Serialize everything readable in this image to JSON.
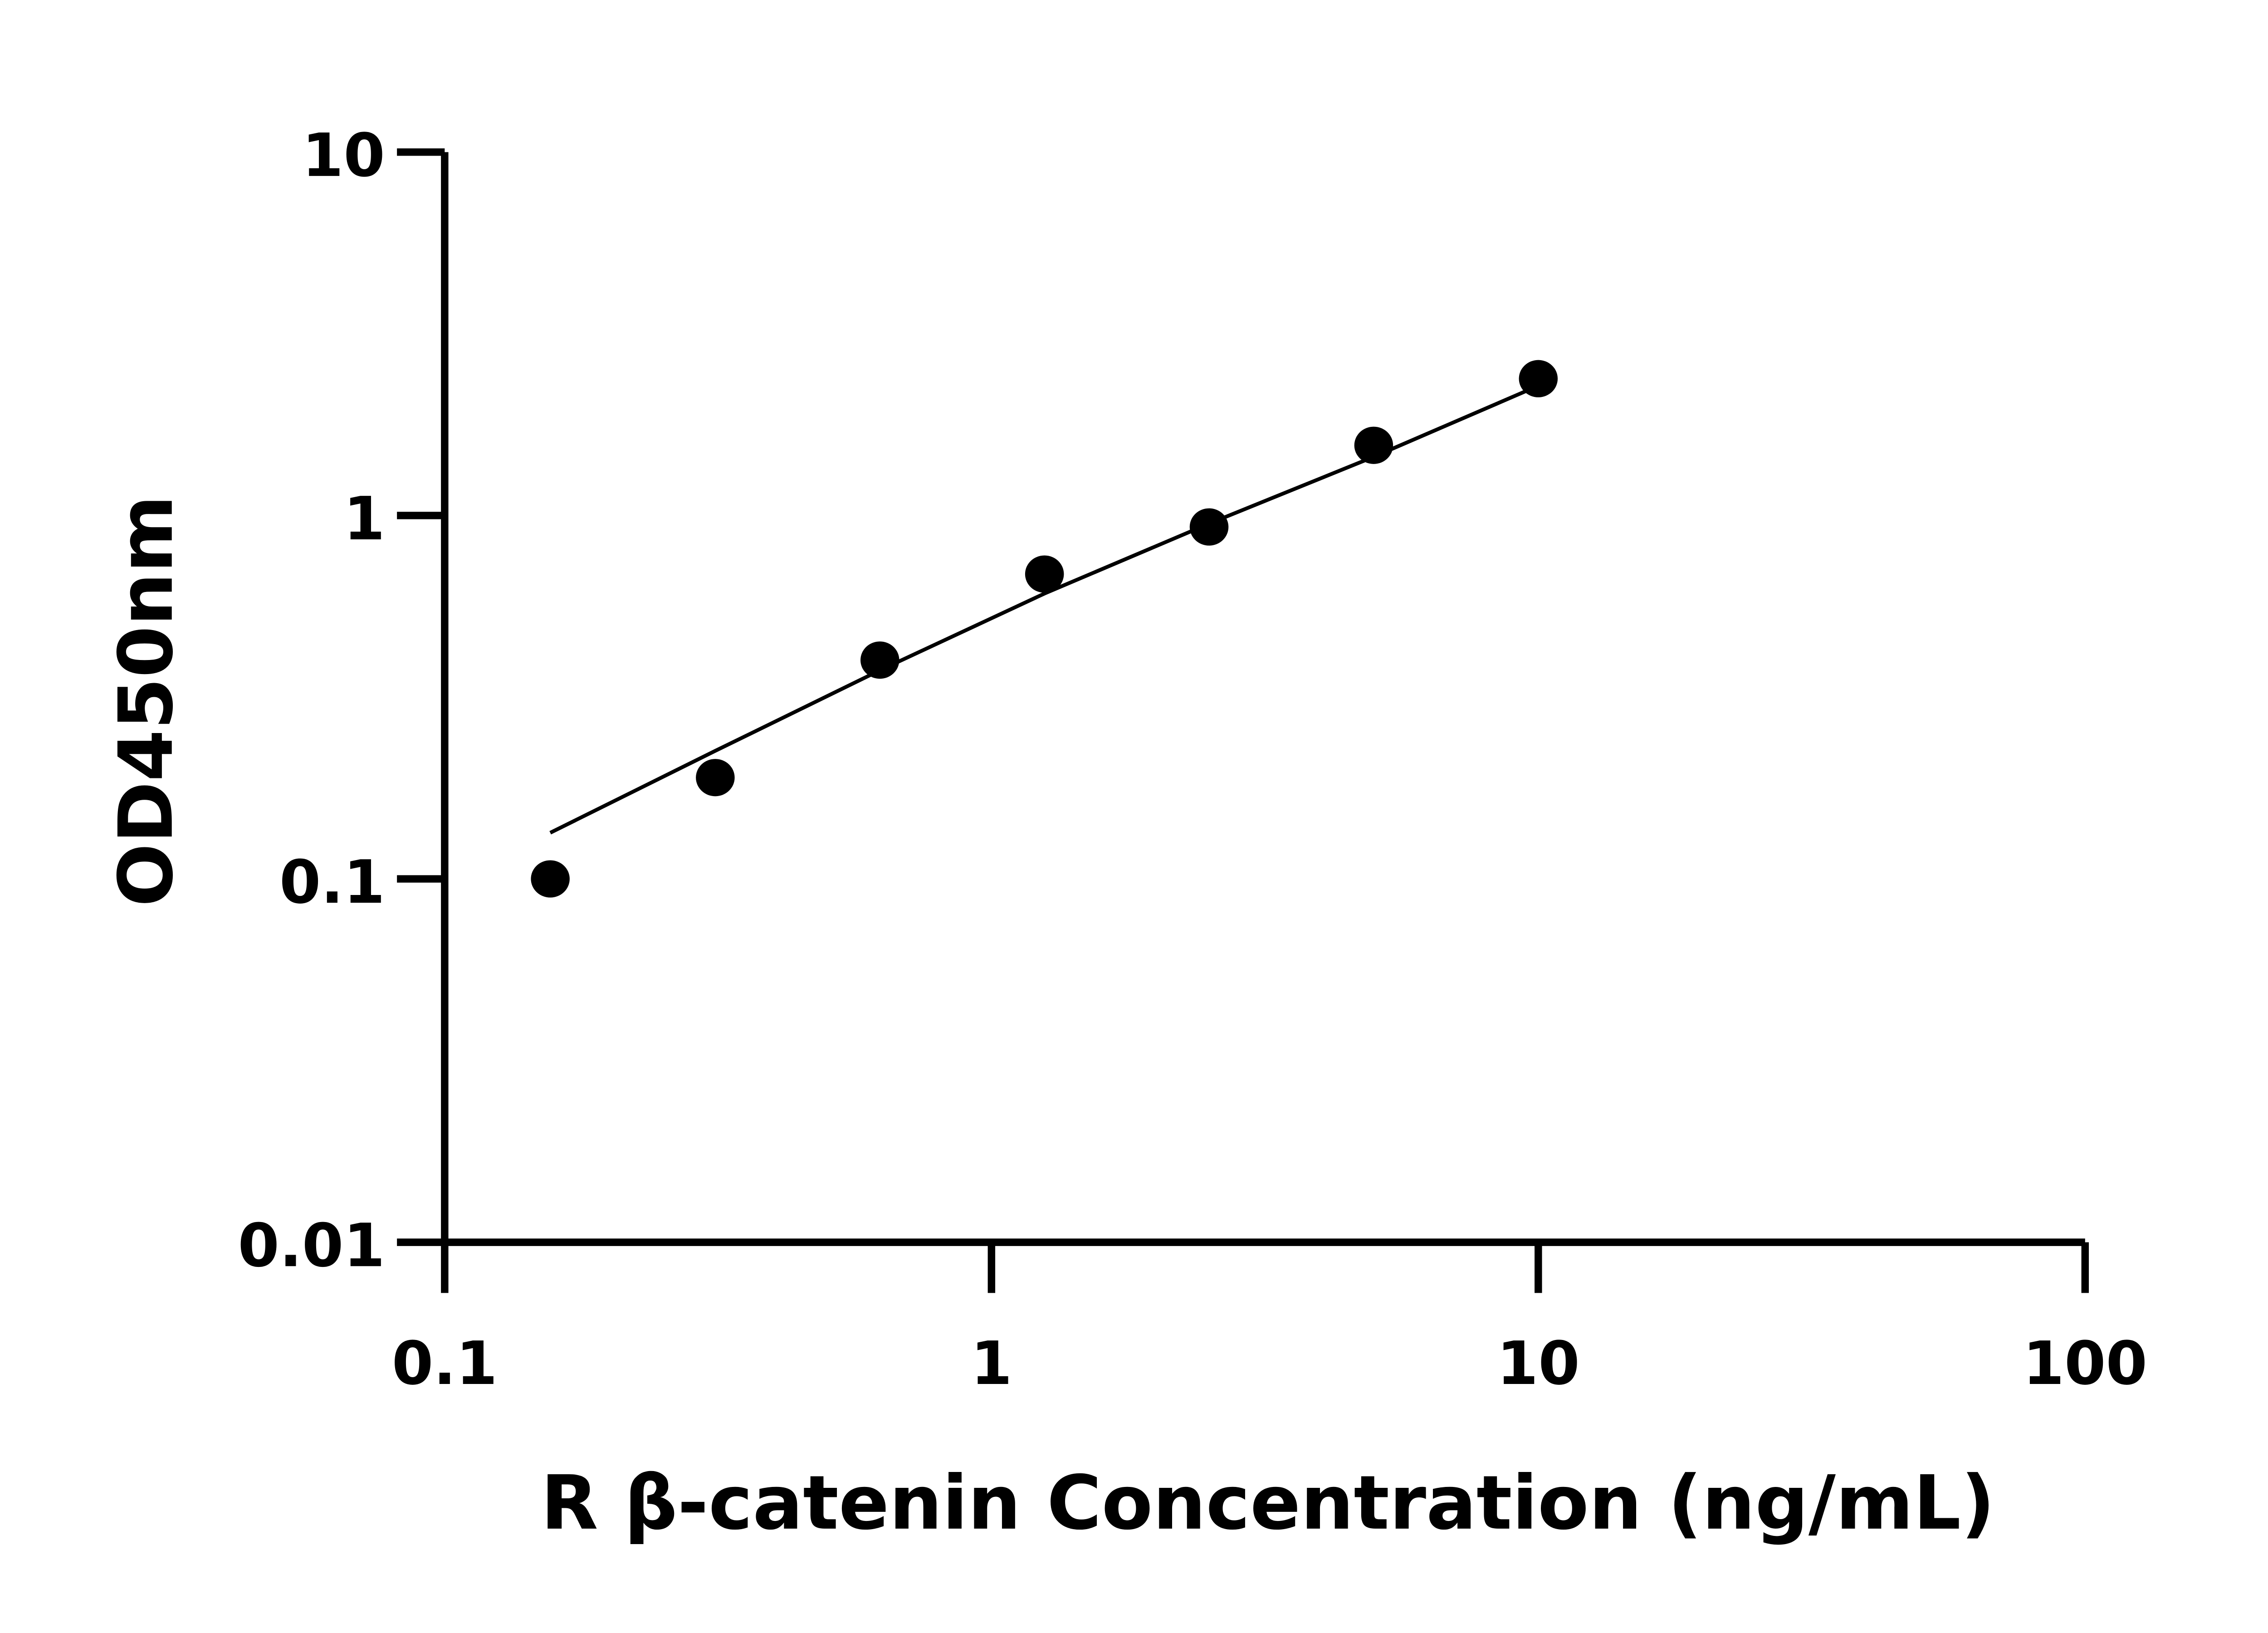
{
  "chart_data": {
    "type": "scatter",
    "title": "",
    "xlabel": "R β-catenin Concentration (ng/mL)",
    "ylabel": "OD450nm",
    "x_scale": "log",
    "y_scale": "log",
    "xlim": [
      0.1,
      100
    ],
    "ylim": [
      0.01,
      10
    ],
    "x_ticks": [
      "0.1",
      "1",
      "10",
      "100"
    ],
    "y_ticks": [
      "0.01",
      "0.1",
      "1",
      "10"
    ],
    "grid": false,
    "legend": "none",
    "colors": {
      "points": "#000000",
      "fit": "#000000",
      "axes": "#000000"
    },
    "series": [
      {
        "x": [
          0.156,
          0.3125,
          0.625,
          1.25,
          2.5,
          5,
          10
        ],
        "y": [
          0.1,
          0.19,
          0.4,
          0.69,
          0.93,
          1.56,
          2.38
        ]
      }
    ],
    "fit_curve": {
      "x": [
        0.156,
        0.3125,
        0.625,
        1.25,
        2.5,
        5,
        9.5
      ],
      "y": [
        0.134,
        0.225,
        0.375,
        0.61,
        0.95,
        1.45,
        2.2
      ]
    }
  }
}
